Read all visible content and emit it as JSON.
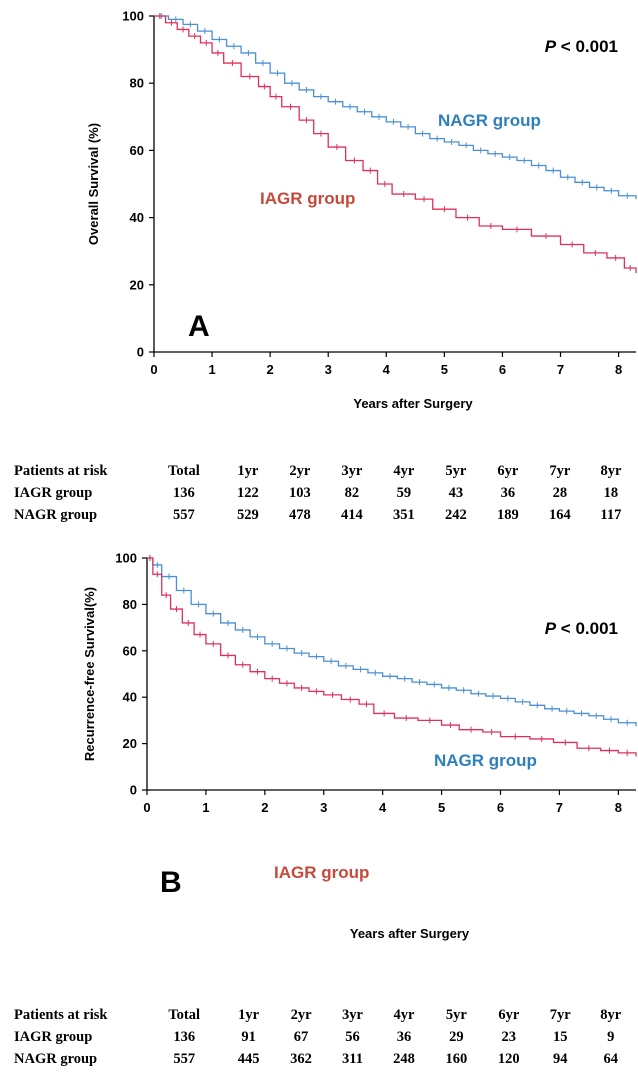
{
  "colors": {
    "nagr": "#4a90d6",
    "iagr": "#e0305a",
    "nagr_label": "#2e7fc0",
    "iagr_label": "#c8483a"
  },
  "panel_a": {
    "panel_letter": "A",
    "p_value_prefix": "P",
    "p_value_suffix": " < 0.001",
    "nagr_label": "NAGR group",
    "iagr_label": "IAGR group",
    "risk_table": {
      "header": [
        "Patients at risk",
        "Total",
        "1yr",
        "2yr",
        "3yr",
        "4yr",
        "5yr",
        "6yr",
        "7yr",
        "8yr"
      ],
      "rows": [
        [
          "IAGR group",
          "136",
          "122",
          "103",
          "82",
          "59",
          "43",
          "36",
          "28",
          "18"
        ],
        [
          "NAGR group",
          "557",
          "529",
          "478",
          "414",
          "351",
          "242",
          "189",
          "164",
          "117"
        ]
      ]
    }
  },
  "panel_b": {
    "panel_letter": "B",
    "p_value_prefix": "P",
    "p_value_suffix": " < 0.001",
    "nagr_label": "NAGR group",
    "iagr_label": "IAGR group",
    "risk_table": {
      "header": [
        "Patients at risk",
        "Total",
        "1yr",
        "2yr",
        "3yr",
        "4yr",
        "5yr",
        "6yr",
        "7yr",
        "8yr"
      ],
      "rows": [
        [
          "IAGR group",
          "136",
          "91",
          "67",
          "56",
          "36",
          "29",
          "23",
          "15",
          "9"
        ],
        [
          "NAGR group",
          "557",
          "445",
          "362",
          "311",
          "248",
          "160",
          "120",
          "94",
          "64"
        ]
      ]
    }
  },
  "chart_data": [
    {
      "type": "line",
      "step": "post",
      "xlabel": "Years after Surgery",
      "ylabel": "Overall Survival (%)",
      "xlim": [
        0,
        8.3
      ],
      "ylim": [
        0,
        100
      ],
      "xticks": [
        0,
        1,
        2,
        3,
        4,
        5,
        6,
        7,
        8
      ],
      "yticks": [
        0,
        20,
        40,
        60,
        80,
        100
      ],
      "series": [
        {
          "name": "NAGR group",
          "x": [
            0,
            0.25,
            0.5,
            0.75,
            1.0,
            1.25,
            1.5,
            1.75,
            2.0,
            2.25,
            2.5,
            2.75,
            3.0,
            3.25,
            3.5,
            3.75,
            4.0,
            4.25,
            4.5,
            4.75,
            5.0,
            5.25,
            5.5,
            5.75,
            6.0,
            6.25,
            6.5,
            6.75,
            7.0,
            7.25,
            7.5,
            7.75,
            8.0,
            8.3
          ],
          "y": [
            100,
            99,
            97.5,
            95.5,
            93,
            91,
            89,
            86,
            83,
            80,
            78,
            76,
            74.5,
            73,
            71.5,
            70,
            68.5,
            67,
            65,
            63.5,
            62.5,
            61.5,
            60,
            59,
            58,
            57,
            55.5,
            54,
            52,
            50.5,
            49,
            48,
            46.5,
            45.5
          ]
        },
        {
          "name": "IAGR group",
          "x": [
            0,
            0.2,
            0.4,
            0.6,
            0.8,
            1.0,
            1.2,
            1.5,
            1.8,
            2.0,
            2.2,
            2.5,
            2.75,
            3.0,
            3.3,
            3.6,
            3.85,
            4.1,
            4.5,
            4.8,
            5.2,
            5.6,
            6.0,
            6.5,
            7.0,
            7.4,
            7.8,
            8.1,
            8.3
          ],
          "y": [
            100,
            98,
            96,
            94,
            92,
            89,
            86,
            82,
            79,
            76,
            73,
            69,
            65,
            61,
            57,
            54,
            50,
            47,
            45.5,
            42.5,
            40,
            37.5,
            36.5,
            34.5,
            32,
            29.5,
            28,
            25,
            23.5
          ]
        }
      ],
      "annotations": [
        "P < 0.001",
        "NAGR group",
        "IAGR group",
        "A"
      ]
    },
    {
      "type": "line",
      "step": "post",
      "xlabel": "Years after Surgery",
      "ylabel": "Recurrence-free Survival(%)",
      "xlim": [
        0,
        8.3
      ],
      "ylim": [
        0,
        100
      ],
      "xticks": [
        0,
        1,
        2,
        3,
        4,
        5,
        6,
        7,
        8
      ],
      "yticks": [
        0,
        20,
        40,
        60,
        80,
        100
      ],
      "series": [
        {
          "name": "NAGR group",
          "x": [
            0,
            0.1,
            0.25,
            0.5,
            0.75,
            1.0,
            1.25,
            1.5,
            1.75,
            2.0,
            2.25,
            2.5,
            2.75,
            3.0,
            3.25,
            3.5,
            3.75,
            4.0,
            4.25,
            4.5,
            4.75,
            5.0,
            5.25,
            5.5,
            5.75,
            6.0,
            6.25,
            6.5,
            6.75,
            7.0,
            7.25,
            7.5,
            7.75,
            8.0,
            8.3
          ],
          "y": [
            100,
            97,
            92,
            86,
            80,
            76,
            72,
            69,
            66,
            63,
            61,
            59,
            57.5,
            55.5,
            53.5,
            52,
            50.5,
            49,
            48,
            46.5,
            45.5,
            44,
            43,
            41.5,
            40.5,
            39.5,
            38,
            36.5,
            35,
            34,
            33,
            32,
            30.5,
            29,
            27.5
          ]
        },
        {
          "name": "IAGR group",
          "x": [
            0,
            0.1,
            0.25,
            0.4,
            0.6,
            0.8,
            1.0,
            1.25,
            1.5,
            1.75,
            2.0,
            2.25,
            2.5,
            2.75,
            3.0,
            3.3,
            3.6,
            3.85,
            4.2,
            4.6,
            5.0,
            5.3,
            5.7,
            6.0,
            6.5,
            6.9,
            7.3,
            7.7,
            8.0,
            8.3
          ],
          "y": [
            100,
            93,
            84,
            78,
            72,
            67,
            63,
            58,
            54,
            51,
            48,
            46,
            44,
            42.5,
            41,
            39,
            37,
            33,
            31,
            30,
            28,
            26,
            25,
            23,
            22,
            20.5,
            18,
            17,
            16,
            14.5
          ]
        }
      ],
      "annotations": [
        "P < 0.001",
        "NAGR group",
        "IAGR group",
        "B"
      ]
    }
  ]
}
